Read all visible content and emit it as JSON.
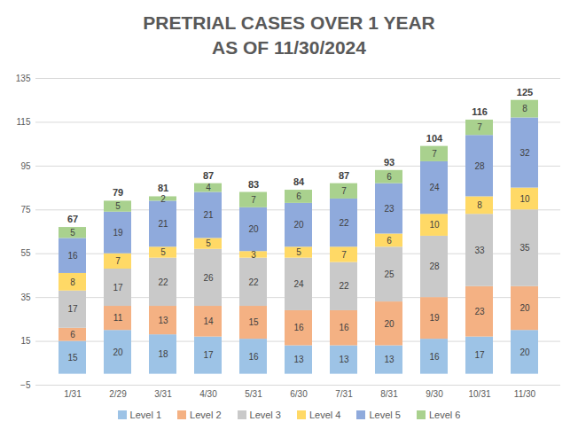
{
  "chart_data": {
    "type": "bar",
    "title": "PRETRIAL CASES OVER 1 YEAR",
    "subtitle": "AS OF 11/30/2024",
    "categories": [
      "1/31",
      "2/29",
      "3/31",
      "4/30",
      "5/31",
      "6/30",
      "7/31",
      "8/31",
      "9/30",
      "10/31",
      "11/30"
    ],
    "series": [
      {
        "name": "Level 1",
        "color": "#9dc3e6",
        "values": [
          15,
          20,
          18,
          17,
          16,
          13,
          13,
          13,
          16,
          17,
          20
        ]
      },
      {
        "name": "Level 2",
        "color": "#f4b183",
        "values": [
          6,
          11,
          13,
          14,
          15,
          16,
          16,
          20,
          19,
          23,
          20
        ]
      },
      {
        "name": "Level 3",
        "color": "#c9c9c9",
        "values": [
          17,
          17,
          22,
          26,
          22,
          24,
          22,
          25,
          28,
          33,
          35
        ]
      },
      {
        "name": "Level 4",
        "color": "#ffd966",
        "values": [
          8,
          7,
          5,
          5,
          3,
          5,
          7,
          6,
          10,
          8,
          10
        ]
      },
      {
        "name": "Level 5",
        "color": "#8faadc",
        "values": [
          16,
          19,
          21,
          21,
          20,
          20,
          22,
          23,
          24,
          28,
          32
        ]
      },
      {
        "name": "Level 6",
        "color": "#a9d18e",
        "values": [
          5,
          5,
          2,
          4,
          7,
          6,
          7,
          6,
          7,
          7,
          8
        ]
      }
    ],
    "totals": [
      67,
      79,
      81,
      87,
      83,
      84,
      87,
      93,
      104,
      116,
      125
    ],
    "ylim": [
      -5,
      135
    ],
    "yticks": [
      -5,
      15,
      35,
      55,
      75,
      95,
      115,
      135
    ],
    "stacked": true,
    "data_labels": true,
    "grid": true,
    "legend": "bottom"
  }
}
